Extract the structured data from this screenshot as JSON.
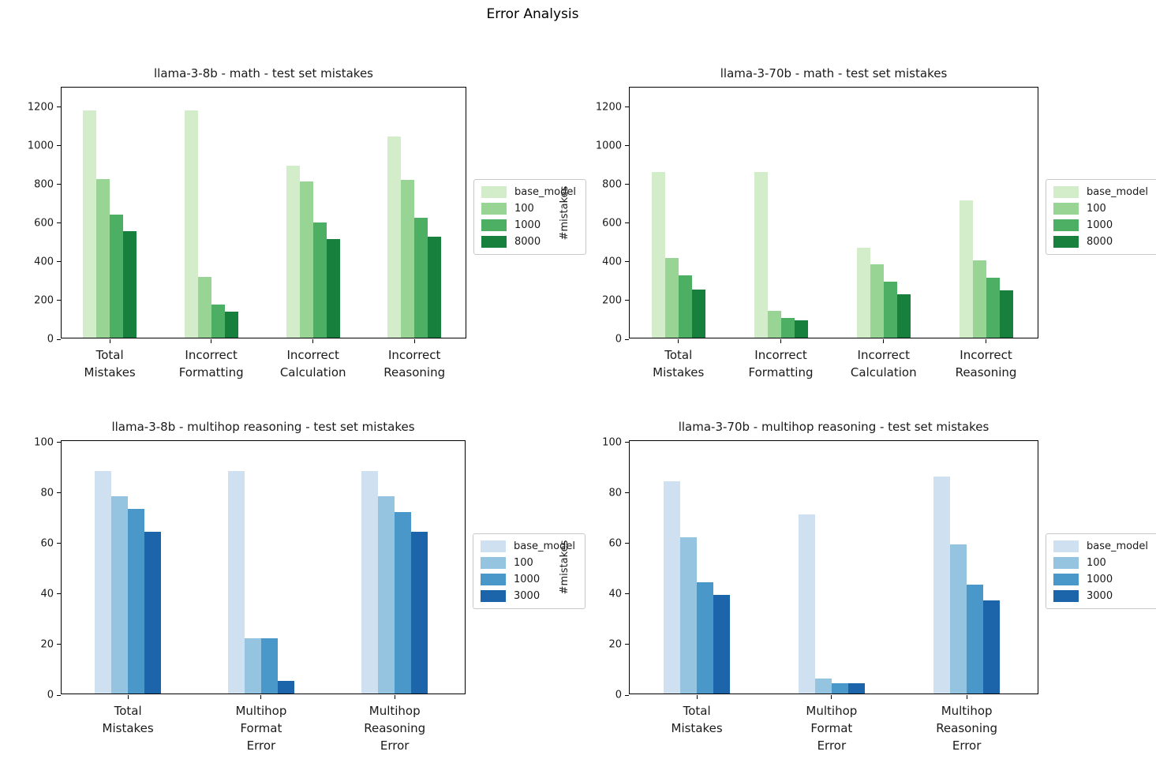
{
  "figure": {
    "title": "Error Analysis"
  },
  "chart_data": [
    {
      "type": "bar",
      "title": "llama-3-8b - math - test set mistakes",
      "ylabel": "#mistakes",
      "categories": [
        "Total Mistakes",
        "Incorrect Formatting",
        "Incorrect Calculation",
        "Incorrect Reasoning"
      ],
      "category_lines": [
        [
          "Total",
          "Mistakes"
        ],
        [
          "Incorrect",
          "Formatting"
        ],
        [
          "Incorrect",
          "Calculation"
        ],
        [
          "Incorrect",
          "Reasoning"
        ]
      ],
      "series": [
        {
          "name": "base_model",
          "color": "#d3edcb",
          "values": [
            1175,
            1175,
            890,
            1040
          ]
        },
        {
          "name": "100",
          "color": "#98d494",
          "values": [
            820,
            315,
            805,
            815
          ]
        },
        {
          "name": "1000",
          "color": "#4caf63",
          "values": [
            635,
            170,
            595,
            620
          ]
        },
        {
          "name": "8000",
          "color": "#17803d",
          "values": [
            550,
            135,
            510,
            520
          ]
        }
      ],
      "ylim": [
        0,
        1300
      ],
      "yticks": [
        0,
        200,
        400,
        600,
        800,
        1000,
        1200
      ],
      "grid": false,
      "legend_position": "center right outside"
    },
    {
      "type": "bar",
      "title": "llama-3-70b - math - test set mistakes",
      "ylabel": "#mistakes",
      "categories": [
        "Total Mistakes",
        "Incorrect Formatting",
        "Incorrect Calculation",
        "Incorrect Reasoning"
      ],
      "category_lines": [
        [
          "Total",
          "Mistakes"
        ],
        [
          "Incorrect",
          "Formatting"
        ],
        [
          "Incorrect",
          "Calculation"
        ],
        [
          "Incorrect",
          "Reasoning"
        ]
      ],
      "series": [
        {
          "name": "base_model",
          "color": "#d3edcb",
          "values": [
            855,
            855,
            465,
            710
          ]
        },
        {
          "name": "100",
          "color": "#98d494",
          "values": [
            410,
            140,
            380,
            400
          ]
        },
        {
          "name": "1000",
          "color": "#4caf63",
          "values": [
            320,
            100,
            290,
            310
          ]
        },
        {
          "name": "8000",
          "color": "#17803d",
          "values": [
            250,
            90,
            225,
            245
          ]
        }
      ],
      "ylim": [
        0,
        1300
      ],
      "yticks": [
        0,
        200,
        400,
        600,
        800,
        1000,
        1200
      ],
      "grid": false,
      "legend_position": "center right outside"
    },
    {
      "type": "bar",
      "title": "llama-3-8b - multihop reasoning - test set mistakes",
      "ylabel": "#mistakes",
      "categories": [
        "Total Mistakes",
        "Multihop Format Error",
        "Multihop Reasoning Error"
      ],
      "category_lines": [
        [
          "Total",
          "Mistakes"
        ],
        [
          "Multihop",
          "Format",
          "Error"
        ],
        [
          "Multihop",
          "Reasoning",
          "Error"
        ]
      ],
      "series": [
        {
          "name": "base_model",
          "color": "#cfe0f0",
          "values": [
            88,
            88,
            88
          ]
        },
        {
          "name": "100",
          "color": "#94c4df",
          "values": [
            78,
            22,
            78
          ]
        },
        {
          "name": "1000",
          "color": "#4a97c9",
          "values": [
            73,
            22,
            72
          ]
        },
        {
          "name": "3000",
          "color": "#1c65ab",
          "values": [
            64,
            5,
            64
          ]
        }
      ],
      "ylim": [
        0,
        100.6
      ],
      "yticks": [
        0,
        20,
        40,
        60,
        80,
        100
      ],
      "grid": false,
      "legend_position": "center right outside"
    },
    {
      "type": "bar",
      "title": "llama-3-70b - multihop reasoning - test set mistakes",
      "ylabel": "#mistakes",
      "categories": [
        "Total Mistakes",
        "Multihop Format Error",
        "Multihop Reasoning Error"
      ],
      "category_lines": [
        [
          "Total",
          "Mistakes"
        ],
        [
          "Multihop",
          "Format",
          "Error"
        ],
        [
          "Multihop",
          "Reasoning",
          "Error"
        ]
      ],
      "series": [
        {
          "name": "base_model",
          "color": "#cfe0f0",
          "values": [
            84,
            71,
            86
          ]
        },
        {
          "name": "100",
          "color": "#94c4df",
          "values": [
            62,
            6,
            59
          ]
        },
        {
          "name": "1000",
          "color": "#4a97c9",
          "values": [
            44,
            4,
            43
          ]
        },
        {
          "name": "3000",
          "color": "#1c65ab",
          "values": [
            39,
            4,
            37
          ]
        }
      ],
      "ylim": [
        0,
        100.6
      ],
      "yticks": [
        0,
        20,
        40,
        60,
        80,
        100
      ],
      "grid": false,
      "legend_position": "center right outside"
    }
  ]
}
